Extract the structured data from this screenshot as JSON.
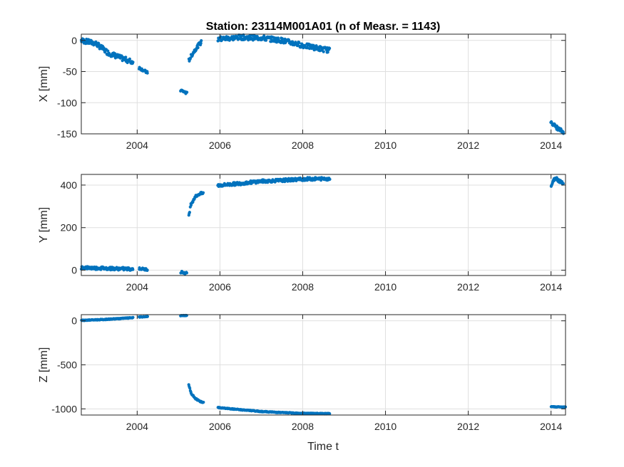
{
  "figure": {
    "title": "Station: 23114M001A01 (n of Measr. = 1143)",
    "xlabel": "Time t",
    "marker_color": "#0072BD"
  },
  "chart_data": [
    {
      "type": "scatter",
      "name": "x-panel",
      "ylabel": "X [mm]",
      "xlim": [
        2002.65,
        2014.35
      ],
      "ylim": [
        -150,
        10
      ],
      "xticks": [
        2004,
        2006,
        2008,
        2010,
        2012,
        2014
      ],
      "yticks": [
        -150,
        -100,
        -50,
        0
      ],
      "grid": true,
      "segments": [
        {
          "x": [
            2002.65,
            2003.0,
            2003.3,
            2003.6,
            2003.9
          ],
          "y": [
            0,
            -5,
            -20,
            -28,
            -35
          ],
          "spread": 4
        },
        {
          "x": [
            2004.05,
            2004.15,
            2004.25
          ],
          "y": [
            -44,
            -48,
            -52
          ],
          "spread": 2
        },
        {
          "x": [
            2005.05,
            2005.12,
            2005.2
          ],
          "y": [
            -80,
            -82,
            -85
          ],
          "spread": 2
        },
        {
          "x": [
            2005.25,
            2005.35,
            2005.45,
            2005.55
          ],
          "y": [
            -32,
            -20,
            -10,
            -3
          ],
          "spread": 3
        },
        {
          "x": [
            2005.95,
            2006.5,
            2007.0,
            2007.5,
            2008.0,
            2008.65
          ],
          "y": [
            2,
            5,
            4,
            0,
            -8,
            -16
          ],
          "spread": 4
        },
        {
          "x": [
            2014.0,
            2014.1,
            2014.2,
            2014.3
          ],
          "y": [
            -130,
            -138,
            -143,
            -147
          ],
          "spread": 3
        }
      ]
    },
    {
      "type": "scatter",
      "name": "y-panel",
      "ylabel": "Y [mm]",
      "xlim": [
        2002.65,
        2014.35
      ],
      "ylim": [
        -25,
        450
      ],
      "xticks": [
        2004,
        2006,
        2008,
        2010,
        2012,
        2014
      ],
      "yticks": [
        0,
        200,
        400
      ],
      "grid": true,
      "segments": [
        {
          "x": [
            2002.65,
            2003.0,
            2003.4,
            2003.9
          ],
          "y": [
            12,
            10,
            8,
            5
          ],
          "spread": 7
        },
        {
          "x": [
            2004.05,
            2004.15,
            2004.25
          ],
          "y": [
            8,
            5,
            3
          ],
          "spread": 5
        },
        {
          "x": [
            2005.05,
            2005.12,
            2005.2
          ],
          "y": [
            -8,
            -12,
            -15
          ],
          "spread": 5
        },
        {
          "x": [
            2005.25,
            2005.3,
            2005.4,
            2005.5,
            2005.6
          ],
          "y": [
            260,
            310,
            345,
            358,
            362
          ],
          "spread": 6
        },
        {
          "x": [
            2005.95,
            2006.5,
            2007.0,
            2007.5,
            2008.0,
            2008.65
          ],
          "y": [
            398,
            408,
            418,
            422,
            428,
            430
          ],
          "spread": 7
        },
        {
          "x": [
            2014.0,
            2014.1,
            2014.2,
            2014.3
          ],
          "y": [
            395,
            435,
            420,
            410
          ],
          "spread": 8
        }
      ]
    },
    {
      "type": "scatter",
      "name": "z-panel",
      "ylabel": "Z [mm]",
      "xlim": [
        2002.65,
        2014.35
      ],
      "ylim": [
        -1070,
        70
      ],
      "xticks": [
        2004,
        2006,
        2008,
        2010,
        2012,
        2014
      ],
      "yticks": [
        -1000,
        -500,
        0
      ],
      "grid": true,
      "segments": [
        {
          "x": [
            2002.65,
            2003.2,
            2003.9
          ],
          "y": [
            5,
            15,
            35
          ],
          "spread": 4
        },
        {
          "x": [
            2004.05,
            2004.25
          ],
          "y": [
            42,
            48
          ],
          "spread": 3
        },
        {
          "x": [
            2005.05,
            2005.2
          ],
          "y": [
            58,
            60
          ],
          "spread": 3
        },
        {
          "x": [
            2005.25,
            2005.3,
            2005.4,
            2005.5,
            2005.6
          ],
          "y": [
            -730,
            -820,
            -880,
            -910,
            -930
          ],
          "spread": 6
        },
        {
          "x": [
            2005.95,
            2006.5,
            2007.0,
            2007.5,
            2008.0,
            2008.65
          ],
          "y": [
            -985,
            -1010,
            -1030,
            -1042,
            -1050,
            -1055
          ],
          "spread": 4
        },
        {
          "x": [
            2014.0,
            2014.35
          ],
          "y": [
            -975,
            -980
          ],
          "spread": 3
        }
      ]
    }
  ]
}
